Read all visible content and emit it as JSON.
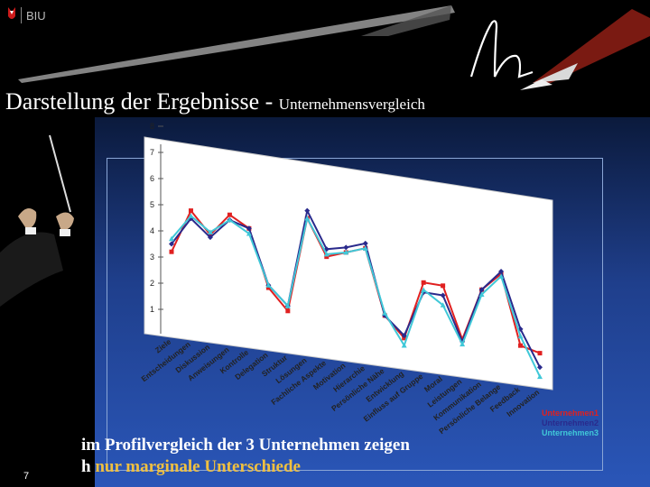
{
  "header": {
    "logo_text": "BIU",
    "title_main": "Darstellung der Ergebnisse",
    "title_sep": " - ",
    "title_sub": "Unternehmensvergleich"
  },
  "footer": {
    "page_number": "7",
    "caption_line1": "im Profilvergleich der 3 Unternehmen zeigen",
    "caption_line2_prefix": "h",
    "caption_line2_highlight": "nur marginale Unterschiede"
  },
  "colors": {
    "series1": "#e02020",
    "series2": "#2a2a8c",
    "series3": "#40c8d8",
    "highlight": "#f0c040",
    "chart_bg": "#ffffff"
  },
  "chart_data": {
    "type": "line",
    "title": "",
    "xlabel": "",
    "ylabel": "",
    "ylim": [
      0,
      8
    ],
    "yticks": [
      "1",
      "2",
      "3",
      "4",
      "5",
      "6",
      "7",
      "8"
    ],
    "grid": false,
    "legend_position": "bottom-right",
    "categories": [
      "Ziele",
      "Entscheidungen",
      "Diskussion",
      "Anweisungen",
      "Kontrolle",
      "Delegation",
      "Struktur",
      "Lösungen",
      "Fachliche Aspekte",
      "Motivation",
      "Hierarchie",
      "Persönliche Nähe",
      "Entwicklung",
      "Einfluss auf Gruppe",
      "Moral",
      "Leistungen",
      "Kommunikation",
      "Persönliche Belange",
      "Feedback",
      "Innovation"
    ],
    "series": [
      {
        "name": "Unternehmen1",
        "values": [
          3.2,
          4.9,
          4.1,
          5.0,
          4.6,
          2.4,
          1.6,
          5.4,
          4.0,
          4.3,
          4.6,
          2.0,
          1.2,
          3.6,
          3.6,
          1.5,
          3.7,
          4.5,
          1.6,
          1.4
        ]
      },
      {
        "name": "Unternehmen2",
        "values": [
          3.5,
          4.6,
          4.0,
          4.8,
          4.6,
          2.5,
          1.8,
          5.7,
          4.3,
          4.5,
          4.8,
          2.0,
          1.3,
          3.2,
          3.2,
          1.4,
          3.7,
          4.6,
          2.3,
          0.8
        ]
      },
      {
        "name": "Unternehmen3",
        "values": [
          3.7,
          4.7,
          4.2,
          4.8,
          4.4,
          2.5,
          1.8,
          5.4,
          4.1,
          4.3,
          4.6,
          2.1,
          0.9,
          3.3,
          2.8,
          1.3,
          3.5,
          4.4,
          2.0,
          0.4
        ]
      }
    ]
  }
}
